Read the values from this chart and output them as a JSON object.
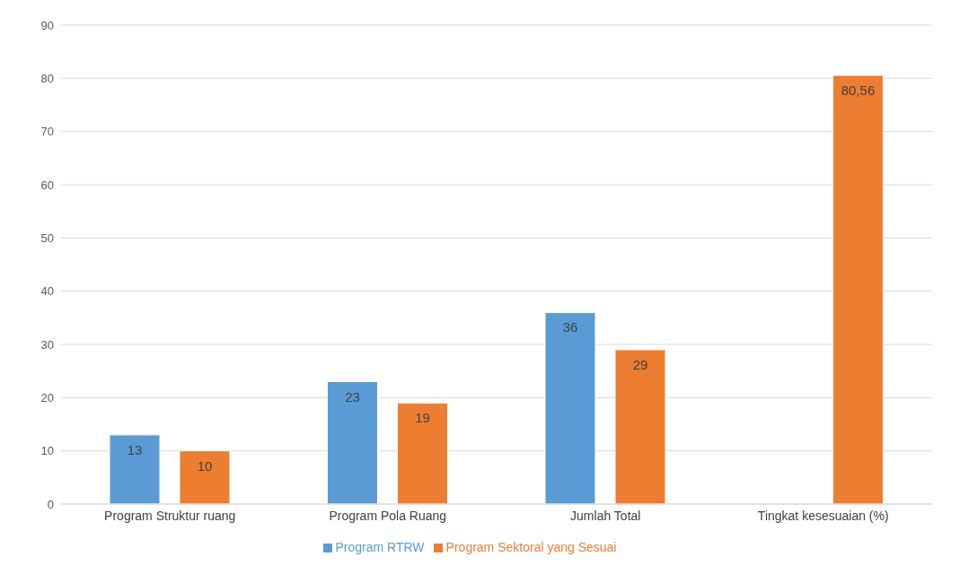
{
  "chart_data": {
    "type": "bar",
    "categories": [
      "Program Struktur ruang",
      "Program Pola Ruang",
      "Jumlah Total",
      "Tingkat kesesuaian (%)"
    ],
    "series": [
      {
        "name": "Program RTRW",
        "color": "#5b9bd5",
        "values": [
          13,
          23,
          36,
          null
        ],
        "value_labels": [
          "13",
          "23",
          "36",
          null
        ]
      },
      {
        "name": "Program Sektoral yang Sesuai",
        "color": "#ed7d31",
        "values": [
          10,
          19,
          29,
          80.56
        ],
        "value_labels": [
          "10",
          "19",
          "29",
          "80,56"
        ]
      }
    ],
    "ylim": [
      0,
      90
    ],
    "yticks": [
      0,
      10,
      20,
      30,
      40,
      50,
      60,
      70,
      80,
      90
    ],
    "grid": "y",
    "legend": "bottom"
  }
}
